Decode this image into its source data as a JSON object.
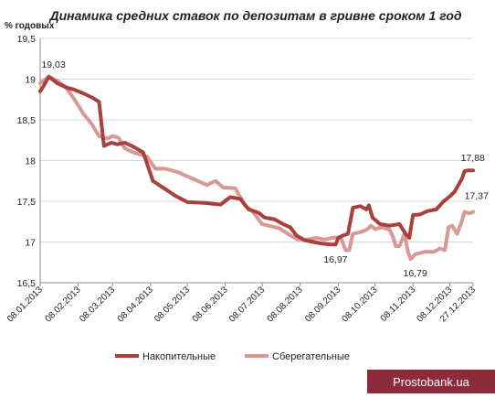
{
  "chart_data": {
    "type": "line",
    "title": "Динамика средних ставок по депозитам в гривне сроком 1 год",
    "ylabel": "% годовых",
    "xlabel": "",
    "ylim": [
      16.5,
      19.5
    ],
    "y_ticks": [
      "16,5",
      "17",
      "17,5",
      "18",
      "18,5",
      "19",
      "19,5"
    ],
    "x_ticks": [
      "08.01.2013",
      "08.02.2013",
      "08.03.2013",
      "08.04.2013",
      "08.05.2013",
      "08.06.2013",
      "08.07.2013",
      "08.08.2013",
      "08.09.2013",
      "08.10.2013",
      "08.11.2013",
      "08.12.2013",
      "27.12.2013"
    ],
    "grid": "horizontal",
    "legend_position": "bottom",
    "series": [
      {
        "name": "Накопительные",
        "color": "#a9403c",
        "points": [
          [
            "2013-01-08",
            18.85
          ],
          [
            "2013-01-11",
            18.92
          ],
          [
            "2013-01-15",
            19.03
          ],
          [
            "2013-01-22",
            18.95
          ],
          [
            "2013-01-29",
            18.9
          ],
          [
            "2013-02-05",
            18.87
          ],
          [
            "2013-02-13",
            18.82
          ],
          [
            "2013-02-20",
            18.77
          ],
          [
            "2013-02-25",
            18.72
          ],
          [
            "2013-03-01",
            18.18
          ],
          [
            "2013-03-07",
            18.22
          ],
          [
            "2013-03-12",
            18.2
          ],
          [
            "2013-03-18",
            18.22
          ],
          [
            "2013-03-25",
            18.17
          ],
          [
            "2013-04-02",
            18.1
          ],
          [
            "2013-04-10",
            17.75
          ],
          [
            "2013-04-18",
            17.67
          ],
          [
            "2013-04-28",
            17.57
          ],
          [
            "2013-05-08",
            17.49
          ],
          [
            "2013-05-22",
            17.48
          ],
          [
            "2013-06-04",
            17.46
          ],
          [
            "2013-06-12",
            17.55
          ],
          [
            "2013-06-20",
            17.53
          ],
          [
            "2013-06-27",
            17.4
          ],
          [
            "2013-07-05",
            17.36
          ],
          [
            "2013-07-10",
            17.3
          ],
          [
            "2013-07-18",
            17.28
          ],
          [
            "2013-07-25",
            17.22
          ],
          [
            "2013-07-31",
            17.18
          ],
          [
            "2013-08-05",
            17.08
          ],
          [
            "2013-08-12",
            17.02
          ],
          [
            "2013-08-19",
            17.0
          ],
          [
            "2013-08-26",
            16.98
          ],
          [
            "2013-09-02",
            16.97
          ],
          [
            "2013-09-06",
            16.97
          ],
          [
            "2013-09-08",
            17.05
          ],
          [
            "2013-09-12",
            17.08
          ],
          [
            "2013-09-16",
            17.1
          ],
          [
            "2013-09-20",
            17.42
          ],
          [
            "2013-09-26",
            17.44
          ],
          [
            "2013-10-01",
            17.4
          ],
          [
            "2013-10-03",
            17.45
          ],
          [
            "2013-10-06",
            17.3
          ],
          [
            "2013-10-12",
            17.22
          ],
          [
            "2013-10-20",
            17.2
          ],
          [
            "2013-10-28",
            17.22
          ],
          [
            "2013-11-02",
            17.1
          ],
          [
            "2013-11-05",
            17.05
          ],
          [
            "2013-11-08",
            17.33
          ],
          [
            "2013-11-14",
            17.34
          ],
          [
            "2013-11-20",
            17.38
          ],
          [
            "2013-11-27",
            17.4
          ],
          [
            "2013-12-03",
            17.5
          ],
          [
            "2013-12-08",
            17.56
          ],
          [
            "2013-12-12",
            17.62
          ],
          [
            "2013-12-15",
            17.7
          ],
          [
            "2013-12-18",
            17.78
          ],
          [
            "2013-12-20",
            17.87
          ],
          [
            "2013-12-23",
            17.88
          ],
          [
            "2013-12-27",
            17.88
          ]
        ]
      },
      {
        "name": "Сберегательные",
        "color": "#d99893",
        "points": [
          [
            "2013-01-08",
            18.95
          ],
          [
            "2013-01-15",
            19.03
          ],
          [
            "2013-01-22",
            18.98
          ],
          [
            "2013-01-29",
            18.9
          ],
          [
            "2013-02-05",
            18.75
          ],
          [
            "2013-02-12",
            18.58
          ],
          [
            "2013-02-19",
            18.45
          ],
          [
            "2013-02-25",
            18.3
          ],
          [
            "2013-03-04",
            18.27
          ],
          [
            "2013-03-08",
            18.3
          ],
          [
            "2013-03-13",
            18.28
          ],
          [
            "2013-03-18",
            18.15
          ],
          [
            "2013-03-25",
            18.1
          ],
          [
            "2013-04-05",
            18.05
          ],
          [
            "2013-04-12",
            17.9
          ],
          [
            "2013-04-20",
            17.9
          ],
          [
            "2013-04-30",
            17.86
          ],
          [
            "2013-05-12",
            17.78
          ],
          [
            "2013-05-24",
            17.7
          ],
          [
            "2013-05-31",
            17.75
          ],
          [
            "2013-06-06",
            17.67
          ],
          [
            "2013-06-16",
            17.66
          ],
          [
            "2013-06-24",
            17.45
          ],
          [
            "2013-06-30",
            17.38
          ],
          [
            "2013-07-08",
            17.22
          ],
          [
            "2013-07-16",
            17.19
          ],
          [
            "2013-07-22",
            17.17
          ],
          [
            "2013-07-29",
            17.1
          ],
          [
            "2013-08-06",
            17.03
          ],
          [
            "2013-08-13",
            17.03
          ],
          [
            "2013-08-21",
            17.05
          ],
          [
            "2013-08-28",
            17.03
          ],
          [
            "2013-09-03",
            17.05
          ],
          [
            "2013-09-10",
            17.06
          ],
          [
            "2013-09-14",
            16.9
          ],
          [
            "2013-09-17",
            16.9
          ],
          [
            "2013-09-20",
            17.1
          ],
          [
            "2013-09-26",
            17.12
          ],
          [
            "2013-10-01",
            17.15
          ],
          [
            "2013-10-05",
            17.2
          ],
          [
            "2013-10-08",
            17.16
          ],
          [
            "2013-10-14",
            17.18
          ],
          [
            "2013-10-20",
            17.15
          ],
          [
            "2013-10-23",
            17.05
          ],
          [
            "2013-10-25",
            16.95
          ],
          [
            "2013-10-28",
            16.95
          ],
          [
            "2013-11-01",
            17.1
          ],
          [
            "2013-11-04",
            16.88
          ],
          [
            "2013-11-06",
            16.79
          ],
          [
            "2013-11-10",
            16.85
          ],
          [
            "2013-11-18",
            16.88
          ],
          [
            "2013-11-25",
            16.88
          ],
          [
            "2013-11-30",
            16.92
          ],
          [
            "2013-12-04",
            16.9
          ],
          [
            "2013-12-07",
            17.18
          ],
          [
            "2013-12-10",
            17.2
          ],
          [
            "2013-12-14",
            17.1
          ],
          [
            "2013-12-17",
            17.22
          ],
          [
            "2013-12-20",
            17.37
          ],
          [
            "2013-12-24",
            17.35
          ],
          [
            "2013-12-27",
            17.37
          ]
        ]
      }
    ],
    "annotations": [
      {
        "text": "19,03",
        "x": "2013-01-15",
        "y": 19.03,
        "dx": -8,
        "dy": -10
      },
      {
        "text": "16,97",
        "x": "2013-09-02",
        "y": 16.97,
        "dx": -8,
        "dy": 20
      },
      {
        "text": "16,79",
        "x": "2013-11-06",
        "y": 16.79,
        "dx": -8,
        "dy": 19
      },
      {
        "text": "17,88",
        "x": "2013-12-23",
        "y": 17.88,
        "dx": -8,
        "dy": -10
      },
      {
        "text": "17,37",
        "x": "2013-12-20",
        "y": 17.37,
        "dx": 0,
        "dy": -14
      }
    ]
  },
  "watermark": {
    "text": "Prostobank.ua",
    "bg_color": "#8c2b3a"
  }
}
